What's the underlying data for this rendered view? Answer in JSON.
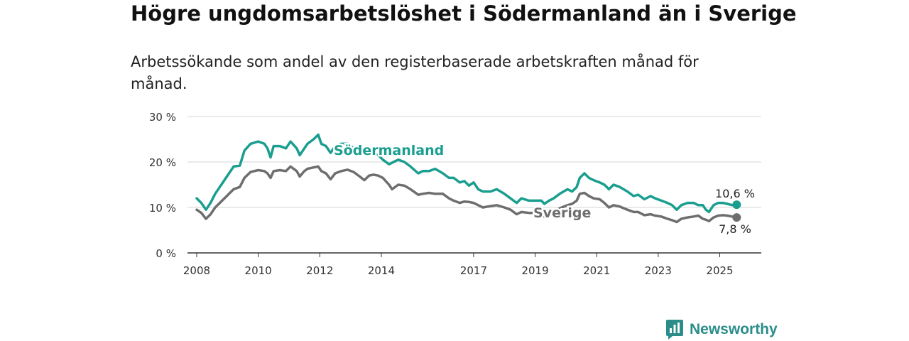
{
  "title": "Högre ungdomsarbetslöshet i Södermanland än i Sverige",
  "subtitle": "Arbetssökande som andel av den registerbaserade arbetskraften månad för månad.",
  "brand": {
    "name": "Newsworthy",
    "icon": "newsworthy-logo-icon",
    "color": "#2a8d8a"
  },
  "chart_data": {
    "type": "line",
    "title": "Högre ungdomsarbetslöshet i Södermanland än i Sverige",
    "subtitle": "Arbetssökande som andel av den registerbaserade arbetskraften månad för månad.",
    "xlabel": "",
    "ylabel": "",
    "ylim": [
      0,
      30
    ],
    "xlim": [
      2007.7,
      2026.35
    ],
    "yticks": [
      0,
      10,
      20,
      30
    ],
    "ytick_labels": [
      "0 %",
      "10 %",
      "20 %",
      "30 %"
    ],
    "xticks": [
      2008,
      2010,
      2012,
      2014,
      2017,
      2019,
      2021,
      2023,
      2025
    ],
    "xtick_labels": [
      "2008",
      "2010",
      "2012",
      "2014",
      "2017",
      "2019",
      "2021",
      "2023",
      "2025"
    ],
    "grid": "horizontal",
    "legend": "direct labels on lines",
    "series": [
      {
        "name": "Södermanland",
        "color": "#1a9e8f",
        "end_label": "10,6 %",
        "points": [
          [
            2008.0,
            12.0
          ],
          [
            2008.15,
            11.0
          ],
          [
            2008.3,
            9.5
          ],
          [
            2008.45,
            11.0
          ],
          [
            2008.6,
            13.0
          ],
          [
            2008.75,
            14.5
          ],
          [
            2008.9,
            16.0
          ],
          [
            2009.05,
            17.5
          ],
          [
            2009.2,
            19.0
          ],
          [
            2009.4,
            19.2
          ],
          [
            2009.55,
            22.5
          ],
          [
            2009.75,
            24.0
          ],
          [
            2010.0,
            24.5
          ],
          [
            2010.2,
            24.0
          ],
          [
            2010.3,
            23.0
          ],
          [
            2010.4,
            21.0
          ],
          [
            2010.5,
            23.5
          ],
          [
            2010.7,
            23.5
          ],
          [
            2010.9,
            23.0
          ],
          [
            2011.05,
            24.5
          ],
          [
            2011.25,
            23.0
          ],
          [
            2011.35,
            21.5
          ],
          [
            2011.5,
            23.0
          ],
          [
            2011.6,
            24.0
          ],
          [
            2011.8,
            25.0
          ],
          [
            2011.95,
            26.0
          ],
          [
            2012.05,
            24.0
          ],
          [
            2012.2,
            23.5
          ],
          [
            2012.35,
            22.0
          ],
          [
            2012.5,
            23.5
          ],
          [
            2012.7,
            24.0
          ],
          [
            2012.9,
            24.0
          ],
          [
            2013.1,
            23.0
          ],
          [
            2013.3,
            21.5
          ],
          [
            2013.45,
            22.0
          ],
          [
            2013.6,
            21.5
          ],
          [
            2013.75,
            22.0
          ],
          [
            2013.9,
            21.5
          ],
          [
            2014.05,
            20.5
          ],
          [
            2014.25,
            19.5
          ],
          [
            2014.4,
            20.0
          ],
          [
            2014.55,
            20.5
          ],
          [
            2014.75,
            20.0
          ],
          [
            2014.95,
            19.0
          ],
          [
            2015.2,
            17.5
          ],
          [
            2015.35,
            18.0
          ],
          [
            2015.55,
            18.0
          ],
          [
            2015.75,
            18.5
          ],
          [
            2016.0,
            17.5
          ],
          [
            2016.2,
            16.5
          ],
          [
            2016.35,
            16.5
          ],
          [
            2016.55,
            15.5
          ],
          [
            2016.7,
            15.8
          ],
          [
            2016.85,
            14.8
          ],
          [
            2017.0,
            15.5
          ],
          [
            2017.15,
            14.0
          ],
          [
            2017.3,
            13.5
          ],
          [
            2017.55,
            13.5
          ],
          [
            2017.75,
            14.0
          ],
          [
            2018.0,
            13.0
          ],
          [
            2018.2,
            12.0
          ],
          [
            2018.4,
            11.0
          ],
          [
            2018.55,
            12.0
          ],
          [
            2018.8,
            11.5
          ],
          [
            2019.0,
            11.5
          ],
          [
            2019.2,
            11.5
          ],
          [
            2019.3,
            10.8
          ],
          [
            2019.45,
            11.5
          ],
          [
            2019.6,
            12.0
          ],
          [
            2019.8,
            13.0
          ],
          [
            2020.05,
            14.0
          ],
          [
            2020.2,
            13.5
          ],
          [
            2020.35,
            14.5
          ],
          [
            2020.45,
            16.5
          ],
          [
            2020.6,
            17.5
          ],
          [
            2020.75,
            16.5
          ],
          [
            2020.9,
            16.0
          ],
          [
            2021.1,
            15.5
          ],
          [
            2021.25,
            15.0
          ],
          [
            2021.4,
            14.0
          ],
          [
            2021.55,
            15.0
          ],
          [
            2021.75,
            14.5
          ],
          [
            2022.0,
            13.5
          ],
          [
            2022.2,
            12.5
          ],
          [
            2022.35,
            12.8
          ],
          [
            2022.55,
            11.8
          ],
          [
            2022.75,
            12.5
          ],
          [
            2022.9,
            12.0
          ],
          [
            2023.1,
            11.5
          ],
          [
            2023.3,
            11.0
          ],
          [
            2023.45,
            10.5
          ],
          [
            2023.6,
            9.5
          ],
          [
            2023.75,
            10.5
          ],
          [
            2023.95,
            11.0
          ],
          [
            2024.15,
            11.0
          ],
          [
            2024.3,
            10.5
          ],
          [
            2024.45,
            10.5
          ],
          [
            2024.55,
            9.5
          ],
          [
            2024.65,
            9.0
          ],
          [
            2024.8,
            10.5
          ],
          [
            2024.95,
            11.0
          ],
          [
            2025.1,
            11.0
          ],
          [
            2025.25,
            10.8
          ],
          [
            2025.4,
            10.5
          ],
          [
            2025.55,
            10.6
          ]
        ]
      },
      {
        "name": "Sverige",
        "color": "#6e6e70",
        "end_label": "7,8 %",
        "points": [
          [
            2008.0,
            9.5
          ],
          [
            2008.15,
            8.8
          ],
          [
            2008.3,
            7.5
          ],
          [
            2008.45,
            8.5
          ],
          [
            2008.6,
            10.0
          ],
          [
            2008.75,
            11.0
          ],
          [
            2008.9,
            12.0
          ],
          [
            2009.05,
            13.0
          ],
          [
            2009.2,
            14.0
          ],
          [
            2009.4,
            14.5
          ],
          [
            2009.55,
            16.5
          ],
          [
            2009.75,
            17.8
          ],
          [
            2010.0,
            18.2
          ],
          [
            2010.2,
            18.0
          ],
          [
            2010.3,
            17.5
          ],
          [
            2010.4,
            16.5
          ],
          [
            2010.5,
            18.0
          ],
          [
            2010.7,
            18.2
          ],
          [
            2010.9,
            18.0
          ],
          [
            2011.05,
            19.0
          ],
          [
            2011.25,
            18.0
          ],
          [
            2011.35,
            16.8
          ],
          [
            2011.5,
            18.0
          ],
          [
            2011.6,
            18.5
          ],
          [
            2011.8,
            18.8
          ],
          [
            2011.95,
            19.0
          ],
          [
            2012.05,
            18.0
          ],
          [
            2012.2,
            17.5
          ],
          [
            2012.35,
            16.2
          ],
          [
            2012.5,
            17.5
          ],
          [
            2012.7,
            18.0
          ],
          [
            2012.9,
            18.3
          ],
          [
            2013.1,
            17.8
          ],
          [
            2013.3,
            16.8
          ],
          [
            2013.45,
            16.0
          ],
          [
            2013.6,
            17.0
          ],
          [
            2013.75,
            17.2
          ],
          [
            2013.9,
            17.0
          ],
          [
            2014.05,
            16.5
          ],
          [
            2014.25,
            15.0
          ],
          [
            2014.35,
            14.0
          ],
          [
            2014.55,
            15.0
          ],
          [
            2014.75,
            14.8
          ],
          [
            2014.95,
            14.0
          ],
          [
            2015.2,
            12.8
          ],
          [
            2015.35,
            13.0
          ],
          [
            2015.55,
            13.2
          ],
          [
            2015.75,
            13.0
          ],
          [
            2016.0,
            13.0
          ],
          [
            2016.2,
            12.0
          ],
          [
            2016.35,
            11.5
          ],
          [
            2016.55,
            11.0
          ],
          [
            2016.7,
            11.3
          ],
          [
            2016.85,
            11.2
          ],
          [
            2017.0,
            11.0
          ],
          [
            2017.15,
            10.5
          ],
          [
            2017.3,
            10.0
          ],
          [
            2017.55,
            10.3
          ],
          [
            2017.75,
            10.5
          ],
          [
            2018.0,
            10.0
          ],
          [
            2018.2,
            9.5
          ],
          [
            2018.4,
            8.5
          ],
          [
            2018.55,
            9.0
          ],
          [
            2018.8,
            8.8
          ],
          [
            2019.0,
            8.8
          ],
          [
            2019.2,
            8.5
          ],
          [
            2019.3,
            8.0
          ],
          [
            2019.45,
            8.5
          ],
          [
            2019.6,
            9.0
          ],
          [
            2019.8,
            9.8
          ],
          [
            2020.05,
            10.5
          ],
          [
            2020.2,
            10.8
          ],
          [
            2020.35,
            11.5
          ],
          [
            2020.45,
            13.0
          ],
          [
            2020.6,
            13.2
          ],
          [
            2020.75,
            12.5
          ],
          [
            2020.9,
            12.0
          ],
          [
            2021.1,
            11.8
          ],
          [
            2021.25,
            11.0
          ],
          [
            2021.4,
            10.0
          ],
          [
            2021.55,
            10.5
          ],
          [
            2021.75,
            10.2
          ],
          [
            2022.0,
            9.5
          ],
          [
            2022.2,
            9.0
          ],
          [
            2022.35,
            9.0
          ],
          [
            2022.55,
            8.3
          ],
          [
            2022.75,
            8.5
          ],
          [
            2022.9,
            8.2
          ],
          [
            2023.1,
            8.0
          ],
          [
            2023.3,
            7.5
          ],
          [
            2023.45,
            7.2
          ],
          [
            2023.6,
            6.8
          ],
          [
            2023.75,
            7.5
          ],
          [
            2023.95,
            7.8
          ],
          [
            2024.15,
            8.0
          ],
          [
            2024.3,
            8.2
          ],
          [
            2024.45,
            7.5
          ],
          [
            2024.55,
            7.3
          ],
          [
            2024.65,
            7.0
          ],
          [
            2024.8,
            7.8
          ],
          [
            2024.95,
            8.2
          ],
          [
            2025.1,
            8.3
          ],
          [
            2025.25,
            8.2
          ],
          [
            2025.4,
            8.0
          ],
          [
            2025.55,
            7.8
          ]
        ]
      }
    ]
  }
}
